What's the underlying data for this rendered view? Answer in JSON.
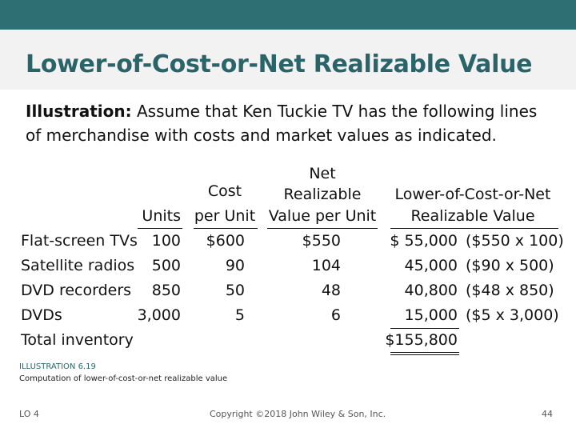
{
  "title": "Lower-of-Cost-or-Net Realizable Value",
  "intro": {
    "lead": "Illustration:",
    "text": " Assume that Ken Tuckie TV has the following lines of merchandise with costs and market values as indicated."
  },
  "table": {
    "headers": {
      "units": "Units",
      "cost_l1": "Cost",
      "cost_l2": "per Unit",
      "nrv_l1": "Net",
      "nrv_l2": "Realizable",
      "nrv_l3": "Value per Unit",
      "lcnrv_l1": "Lower-of-Cost-or-Net",
      "lcnrv_l2": "Realizable Value"
    },
    "rows": [
      {
        "item": "Flat-screen TVs",
        "units": "100",
        "cost": "$600",
        "nrv": "$550",
        "lcnrv": "$ 55,000",
        "calc": "($550 x 100)"
      },
      {
        "item": "Satellite radios",
        "units": "500",
        "cost": "90",
        "nrv": "104",
        "lcnrv": "45,000",
        "calc": "($90 x 500)"
      },
      {
        "item": "DVD recorders",
        "units": "850",
        "cost": "50",
        "nrv": "48",
        "lcnrv": "40,800",
        "calc": "($48 x 850)"
      },
      {
        "item": "DVDs",
        "units": "3,000",
        "cost": "5",
        "nrv": "6",
        "lcnrv": "15,000",
        "calc": "($5 x 3,000)"
      }
    ],
    "total": {
      "item": "Total inventory",
      "lcnrv": "$155,800"
    }
  },
  "caption": {
    "label": "ILLUSTRATION 6.19",
    "text": "Computation of lower-of-cost-or-net realizable value"
  },
  "footer": {
    "lo": "LO 4",
    "copyright": "Copyright ©2018 John Wiley & Son, Inc.",
    "page": "44"
  }
}
